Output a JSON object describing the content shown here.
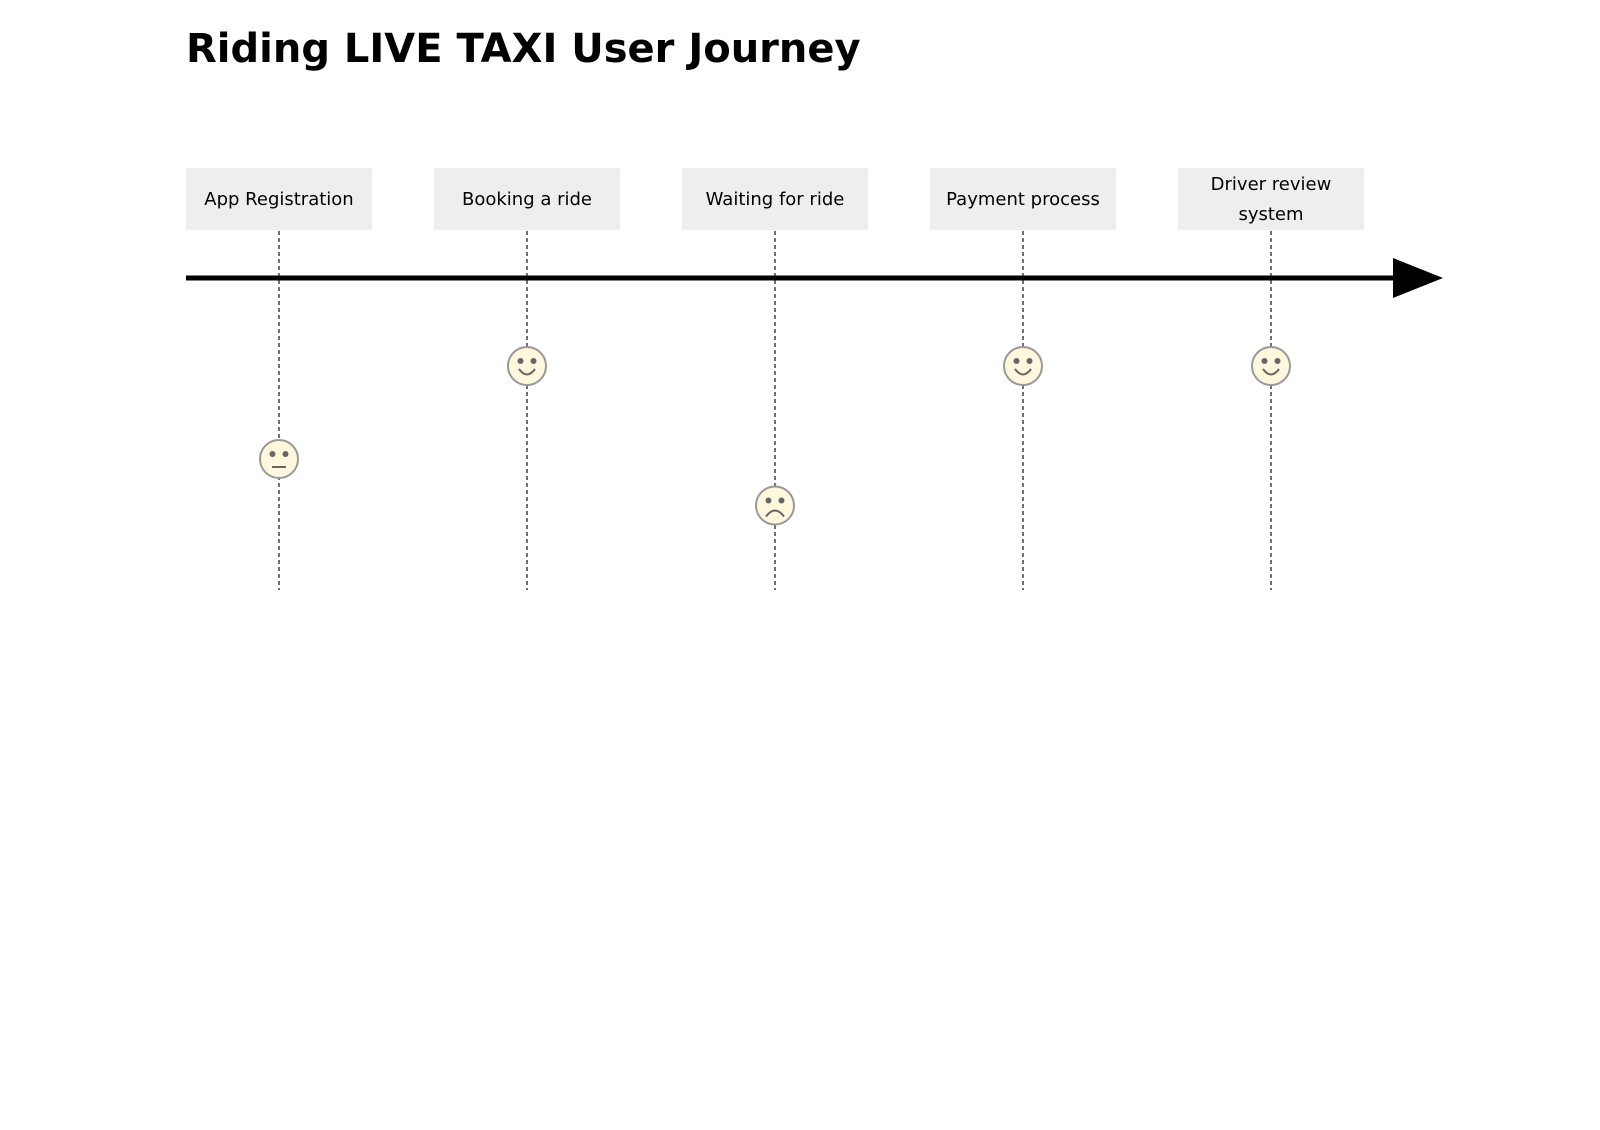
{
  "title": "Riding LIVE TAXI User Journey",
  "colors": {
    "task_box": "#eeeeee",
    "face_fill": "#fff8dc",
    "face_stroke": "#999999",
    "face_feature": "#666666",
    "axis": "#000000",
    "dashed_line": "#444444"
  },
  "score_scale": {
    "min": 1,
    "max": 5
  },
  "tasks": [
    {
      "label_lines": [
        "App Registration"
      ],
      "score": 3,
      "mood": "neutral",
      "icon": "neutral-face-icon"
    },
    {
      "label_lines": [
        "Booking a ride"
      ],
      "score": 5,
      "mood": "happy",
      "icon": "happy-face-icon"
    },
    {
      "label_lines": [
        "Waiting for ride"
      ],
      "score": 2,
      "mood": "sad",
      "icon": "sad-face-icon"
    },
    {
      "label_lines": [
        "Payment process"
      ],
      "score": 5,
      "mood": "happy",
      "icon": "happy-face-icon"
    },
    {
      "label_lines": [
        "Driver review",
        "system"
      ],
      "score": 5,
      "mood": "happy",
      "icon": "happy-face-icon"
    }
  ]
}
